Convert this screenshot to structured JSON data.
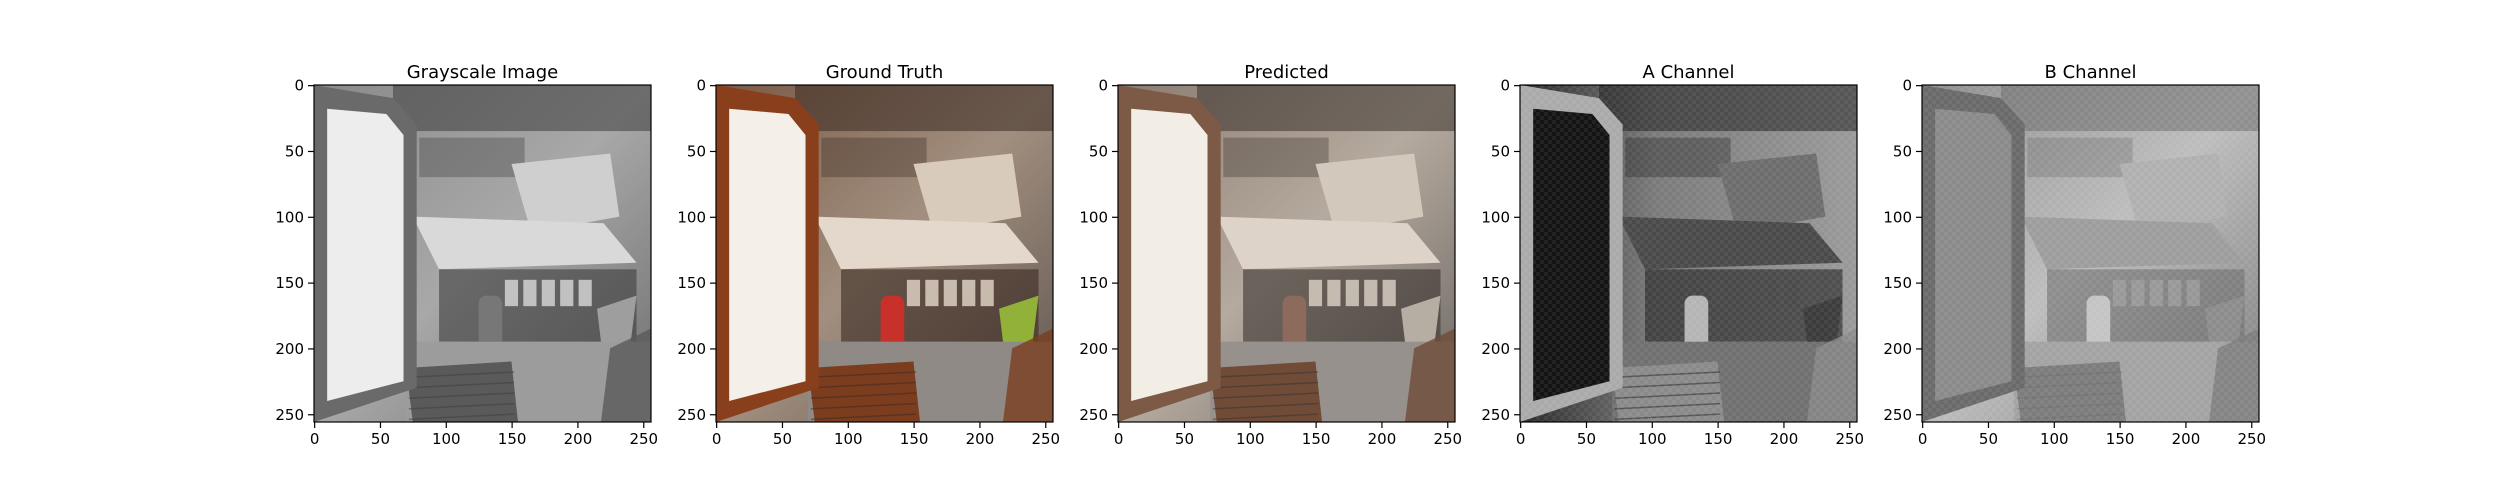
{
  "figure": {
    "panels": [
      {
        "title": "Grayscale Image",
        "image": "grayscale-cabin-photo"
      },
      {
        "title": "Ground Truth",
        "image": "color-cabin-photo"
      },
      {
        "title": "Predicted",
        "image": "predicted-cabin-photo"
      },
      {
        "title": "A Channel",
        "image": "a-channel-map"
      },
      {
        "title": "B Channel",
        "image": "b-channel-map"
      }
    ],
    "x_ticks": [
      "0",
      "50",
      "100",
      "150",
      "200",
      "250"
    ],
    "y_ticks": [
      "0",
      "50",
      "100",
      "150",
      "200",
      "250"
    ],
    "axis_range": [
      0,
      256
    ]
  }
}
